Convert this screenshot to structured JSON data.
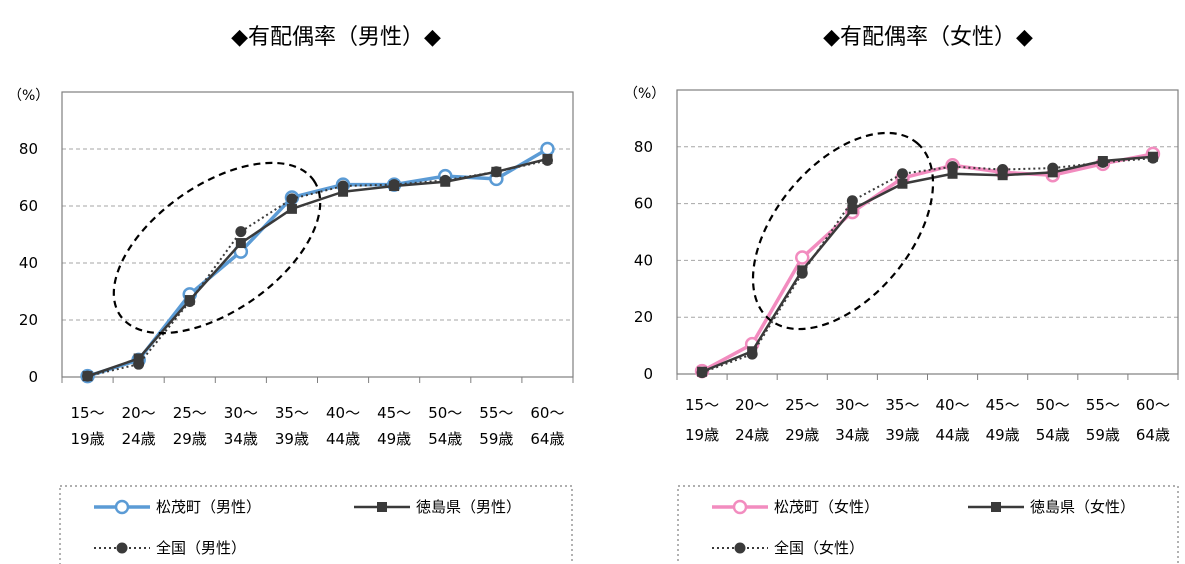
{
  "chart_data": [
    {
      "type": "line",
      "title": "◆有配偶率（男性）◆",
      "ylabel": "（%）",
      "ylim": [
        0,
        100
      ],
      "yticks": [
        0,
        20,
        40,
        60,
        80
      ],
      "grid": true,
      "legend_position": "bottom",
      "categories": [
        [
          "15～",
          "19歳"
        ],
        [
          "20～",
          "24歳"
        ],
        [
          "25～",
          "29歳"
        ],
        [
          "30～",
          "34歳"
        ],
        [
          "35～",
          "39歳"
        ],
        [
          "40～",
          "44歳"
        ],
        [
          "45～",
          "49歳"
        ],
        [
          "50～",
          "54歳"
        ],
        [
          "55～",
          "59歳"
        ],
        [
          "60～",
          "64歳"
        ]
      ],
      "series": [
        {
          "name": "松茂町（男性）",
          "style": "open-circle",
          "color": "#5b9bd5",
          "values": [
            0.3,
            6.0,
            29.0,
            44.0,
            63.0,
            67.5,
            67.5,
            70.5,
            69.5,
            80.0
          ]
        },
        {
          "name": "徳島県（男性）",
          "style": "square",
          "color": "#3a3a3a",
          "values": [
            0.3,
            6.5,
            27.0,
            47.0,
            59.0,
            65.0,
            67.0,
            68.5,
            72.0,
            76.5
          ]
        },
        {
          "name": "全国（男性）",
          "style": "dotted-circle",
          "color": "#3a3a3a",
          "values": [
            0.3,
            4.5,
            26.5,
            51.0,
            62.5,
            67.0,
            67.5,
            69.0,
            72.0,
            76.0
          ]
        }
      ],
      "annotation": {
        "shape": "dashed-ellipse",
        "from": [
          "20～",
          "24歳"
        ],
        "to": [
          "35～",
          "39歳"
        ]
      }
    },
    {
      "type": "line",
      "title": "◆有配偶率（女性）◆",
      "ylabel": "（%）",
      "ylim": [
        0,
        100
      ],
      "yticks": [
        0,
        20,
        40,
        60,
        80
      ],
      "grid": true,
      "legend_position": "bottom",
      "categories": [
        [
          "15～",
          "19歳"
        ],
        [
          "20～",
          "24歳"
        ],
        [
          "25～",
          "29歳"
        ],
        [
          "30～",
          "34歳"
        ],
        [
          "35～",
          "39歳"
        ],
        [
          "40～",
          "44歳"
        ],
        [
          "45～",
          "49歳"
        ],
        [
          "50～",
          "54歳"
        ],
        [
          "55～",
          "59歳"
        ],
        [
          "60～",
          "64歳"
        ]
      ],
      "series": [
        {
          "name": "松茂町（女性）",
          "style": "open-circle",
          "color": "#f28cbf",
          "values": [
            1.0,
            10.5,
            41.0,
            57.0,
            69.0,
            73.5,
            71.0,
            70.0,
            74.0,
            77.5
          ]
        },
        {
          "name": "徳島県（女性）",
          "style": "square",
          "color": "#3a3a3a",
          "values": [
            0.8,
            8.0,
            36.5,
            58.0,
            67.0,
            70.5,
            70.0,
            71.0,
            75.0,
            76.5
          ]
        },
        {
          "name": "全国（女性）",
          "style": "dotted-circle",
          "color": "#3a3a3a",
          "values": [
            0.5,
            7.0,
            35.5,
            61.0,
            70.5,
            73.0,
            72.0,
            72.5,
            74.5,
            76.0
          ]
        }
      ],
      "annotation": {
        "shape": "dashed-ellipse",
        "from": [
          "15～",
          "19歳"
        ],
        "to": [
          "35～",
          "39歳"
        ]
      }
    }
  ]
}
